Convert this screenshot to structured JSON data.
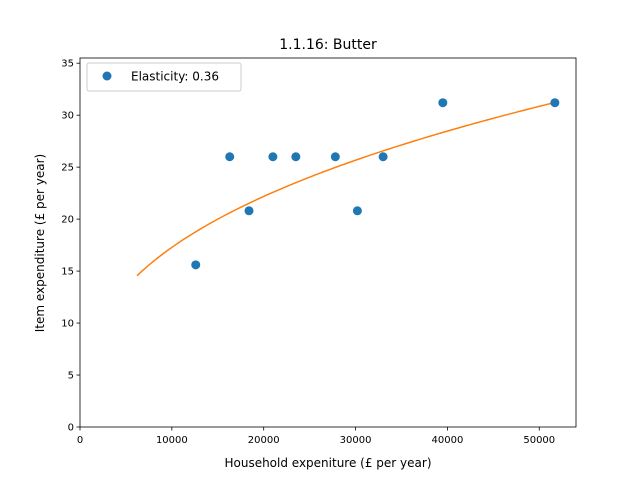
{
  "chart_data": {
    "type": "scatter",
    "title": "1.1.16: Butter",
    "xlabel": "Household expeniture (£ per year)",
    "ylabel": "Item expenditure (£ per year)",
    "xlim": [
      0,
      54000
    ],
    "ylim": [
      0,
      35.5
    ],
    "xticks": [
      0,
      10000,
      20000,
      30000,
      40000,
      50000
    ],
    "yticks": [
      0,
      5,
      10,
      15,
      20,
      25,
      30,
      35
    ],
    "grid": false,
    "legend_position": "upper-left",
    "series": [
      {
        "name": "Elasticity: 0.36",
        "kind": "scatter",
        "color": "#1f77b4",
        "points": [
          {
            "x": 12600,
            "y": 15.6
          },
          {
            "x": 16300,
            "y": 26.0
          },
          {
            "x": 18400,
            "y": 20.8
          },
          {
            "x": 21000,
            "y": 26.0
          },
          {
            "x": 23500,
            "y": 26.0
          },
          {
            "x": 27800,
            "y": 26.0
          },
          {
            "x": 30200,
            "y": 20.8
          },
          {
            "x": 33000,
            "y": 26.0
          },
          {
            "x": 39500,
            "y": 31.2
          },
          {
            "x": 51700,
            "y": 31.2
          }
        ]
      },
      {
        "kind": "line",
        "color": "#ff7f0e",
        "fit": {
          "model": "power",
          "coefficient": 0.6275,
          "exponent": 0.36,
          "x_start": 6200,
          "x_end": 51700
        }
      }
    ]
  }
}
